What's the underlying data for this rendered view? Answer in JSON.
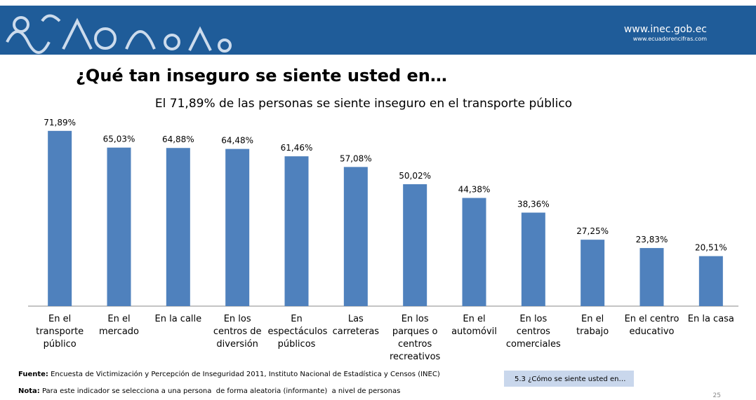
{
  "header": {
    "url": "www.inec.gob.ec",
    "url2": "www.ecuadorencifras.com"
  },
  "chart_data": {
    "type": "bar",
    "title": "¿Qué tan inseguro se siente usted en…",
    "subtitle": "El 71,89% de las personas se siente inseguro en el transporte público",
    "categories": [
      "En el transporte público",
      "En el mercado",
      "En la calle",
      "En los centros de diversión",
      "En espectáculos públicos",
      "Las carreteras",
      "En los parques o centros recreativos",
      "En el automóvil",
      "En los centros comerciales",
      "En el trabajo",
      "En el centro educativo",
      "En la casa"
    ],
    "values": [
      71.89,
      65.03,
      64.88,
      64.48,
      61.46,
      57.08,
      50.02,
      44.38,
      38.36,
      27.25,
      23.83,
      20.51
    ],
    "value_labels": [
      "71,89%",
      "65,03%",
      "64,88%",
      "64,48%",
      "61,46%",
      "57,08%",
      "50,02%",
      "44,38%",
      "38,36%",
      "27,25%",
      "23,83%",
      "20,51%"
    ],
    "color": "#4f81bd"
  },
  "footer": {
    "source_label": "Fuente:",
    "source": "Encuesta de Victimización y Percepción de Inseguridad 2011, Instituto Nacional de Estadística y Censos (INEC)",
    "note_label": "Nota:",
    "note": "Para este indicador se selecciona a una persona  de forma aleatoria (informante)  a nivel de personas",
    "box": "5.3 ¿Cómo se siente usted en…",
    "page": "25"
  }
}
